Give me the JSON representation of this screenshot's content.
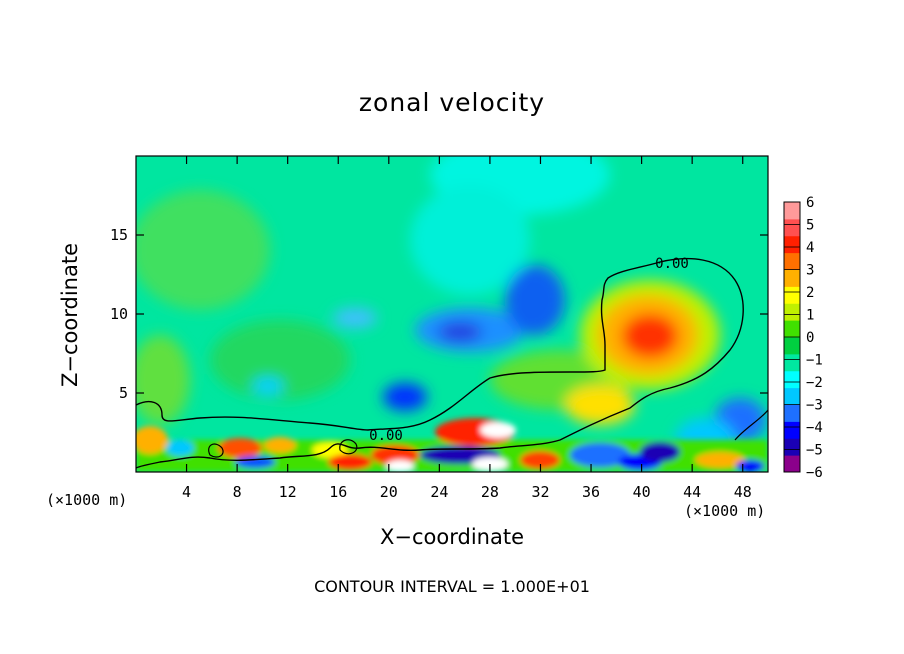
{
  "chart_data": {
    "type": "heatmap",
    "title": "zonal velocity",
    "xlabel": "X−coordinate",
    "ylabel": "Z−coordinate",
    "x_unit": "(×1000 m)",
    "x_ticks": [
      4,
      8,
      12,
      16,
      20,
      24,
      28,
      32,
      36,
      40,
      44,
      48
    ],
    "y_ticks": [
      5,
      10,
      15
    ],
    "xlim": [
      0,
      50
    ],
    "ylim": [
      0,
      20
    ],
    "colorbar": {
      "ticks": [
        "6",
        "5",
        "4",
        "3",
        "2",
        "1",
        "0",
        "−1",
        "−2",
        "−3",
        "−4",
        "−5",
        "−6"
      ],
      "range": [
        -6,
        6
      ],
      "colors": [
        "#8b008b",
        "#1a00b4",
        "#0000ff",
        "#1e70ff",
        "#00c8ff",
        "#00ffff",
        "#00e8a0",
        "#00d040",
        "#40e000",
        "#c0f000",
        "#ffff00",
        "#ffb000",
        "#ff7000",
        "#ff2000",
        "#ff5050",
        "#ff9a9a"
      ]
    },
    "contour_labels": [
      "0.00",
      "0.00"
    ],
    "footer": "CONTOUR INTERVAL = 1.000E+01"
  }
}
